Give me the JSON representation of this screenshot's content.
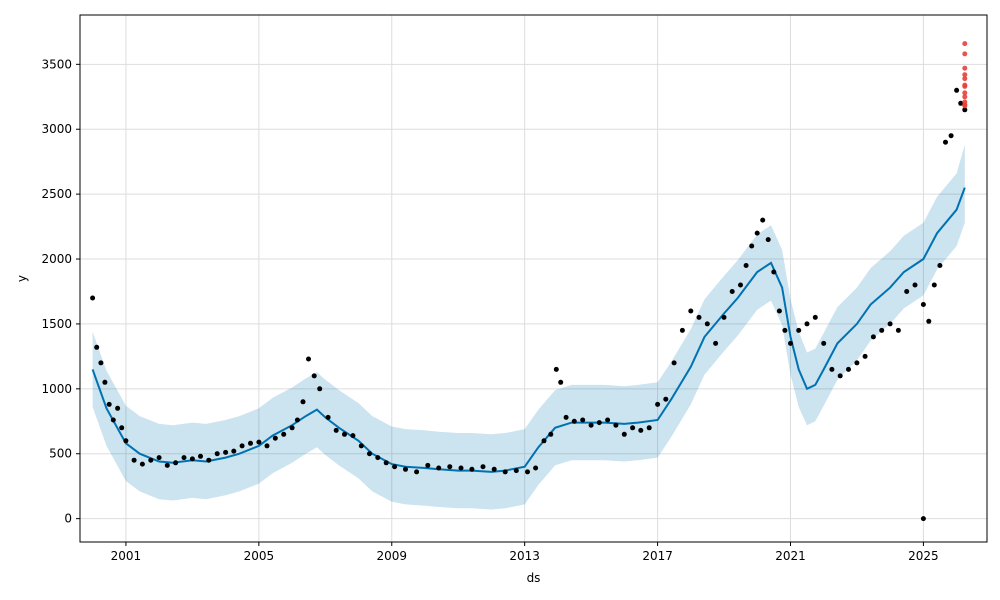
{
  "chart_data": {
    "type": "scatter",
    "title": "",
    "xlabel": "ds",
    "ylabel": "y",
    "x_type": "date",
    "xlim": [
      "1999-08-15",
      "2026-12-01"
    ],
    "ylim": [
      -180,
      3880
    ],
    "xticks": [
      "2001",
      "2005",
      "2009",
      "2013",
      "2017",
      "2021",
      "2025"
    ],
    "yticks": [
      0,
      500,
      1000,
      1500,
      2000,
      2500,
      3000,
      3500
    ],
    "grid": true,
    "colors": {
      "actual": "#000000",
      "forecast_line": "#0072B2",
      "uncertainty_band": "#0072B2",
      "future_points": "#e8403a"
    },
    "series": [
      {
        "name": "",
        "kind": "observed points",
        "x": [
          "2000-01-01",
          "2000-02-15",
          "2000-04-01",
          "2000-05-15",
          "2000-07-01",
          "2000-08-15",
          "2000-10-01",
          "2000-11-15",
          "2001-01-01",
          "2001-04-01",
          "2001-07-01",
          "2001-10-01",
          "2002-01-01",
          "2002-04-01",
          "2002-07-01",
          "2002-10-01",
          "2003-01-01",
          "2003-04-01",
          "2003-07-01",
          "2003-10-01",
          "2004-01-01",
          "2004-04-01",
          "2004-07-01",
          "2004-10-01",
          "2005-01-01",
          "2005-04-01",
          "2005-07-01",
          "2005-10-01",
          "2006-01-01",
          "2006-03-01",
          "2006-05-01",
          "2006-07-01",
          "2006-09-01",
          "2006-11-01",
          "2007-02-01",
          "2007-05-01",
          "2007-08-01",
          "2007-11-01",
          "2008-02-01",
          "2008-05-01",
          "2008-08-01",
          "2008-11-01",
          "2009-02-01",
          "2009-06-01",
          "2009-10-01",
          "2010-02-01",
          "2010-06-01",
          "2010-10-01",
          "2011-02-01",
          "2011-06-01",
          "2011-10-01",
          "2012-02-01",
          "2012-06-01",
          "2012-10-01",
          "2013-02-01",
          "2013-05-01",
          "2013-08-01",
          "2013-10-15",
          "2013-12-15",
          "2014-02-01",
          "2014-04-01",
          "2014-07-01",
          "2014-10-01",
          "2015-01-01",
          "2015-04-01",
          "2015-07-01",
          "2015-10-01",
          "2016-01-01",
          "2016-04-01",
          "2016-07-01",
          "2016-10-01",
          "2017-01-01",
          "2017-04-01",
          "2017-07-01",
          "2017-10-01",
          "2018-01-01",
          "2018-04-01",
          "2018-07-01",
          "2018-10-01",
          "2019-01-01",
          "2019-04-01",
          "2019-07-01",
          "2019-09-01",
          "2019-11-01",
          "2020-01-01",
          "2020-03-01",
          "2020-05-01",
          "2020-07-01",
          "2020-09-01",
          "2020-11-01",
          "2021-01-01",
          "2021-04-01",
          "2021-07-01",
          "2021-10-01",
          "2022-01-01",
          "2022-04-01",
          "2022-07-01",
          "2022-10-01",
          "2023-01-01",
          "2023-04-01",
          "2023-07-01",
          "2023-10-01",
          "2024-01-01",
          "2024-04-01",
          "2024-07-01",
          "2024-10-01",
          "2025-01-01",
          "2025-03-01",
          "2025-05-01",
          "2025-07-01",
          "2025-09-01",
          "2025-11-01",
          "2026-01-01",
          "2026-02-15",
          "2026-04-01",
          "2025-01-01"
        ],
        "y": [
          1700,
          1320,
          1200,
          1050,
          880,
          760,
          850,
          700,
          600,
          450,
          420,
          450,
          470,
          410,
          430,
          470,
          460,
          480,
          450,
          500,
          510,
          520,
          560,
          580,
          590,
          560,
          620,
          650,
          700,
          760,
          900,
          1230,
          1100,
          1000,
          780,
          680,
          650,
          640,
          560,
          500,
          470,
          430,
          400,
          380,
          360,
          410,
          390,
          400,
          390,
          380,
          400,
          380,
          360,
          370,
          360,
          390,
          600,
          650,
          1150,
          1050,
          780,
          750,
          760,
          720,
          740,
          760,
          720,
          650,
          700,
          680,
          700,
          880,
          920,
          1200,
          1450,
          1600,
          1550,
          1500,
          1350,
          1550,
          1750,
          1800,
          1950,
          2100,
          2200,
          2300,
          2150,
          1900,
          1600,
          1450,
          1350,
          1450,
          1500,
          1550,
          1350,
          1150,
          1100,
          1150,
          1200,
          1250,
          1400,
          1450,
          1500,
          1450,
          1750,
          1800,
          1650,
          1520,
          1800,
          1950,
          2900,
          2950,
          3300,
          3200,
          3150,
          0
        ]
      },
      {
        "name": "",
        "kind": "forecast line",
        "x": [
          "2000-01-01",
          "2000-06-01",
          "2001-01-01",
          "2001-06-01",
          "2002-01-01",
          "2002-06-01",
          "2003-01-01",
          "2003-06-01",
          "2004-01-01",
          "2004-06-01",
          "2005-01-01",
          "2005-06-01",
          "2006-01-01",
          "2006-06-01",
          "2006-10-01",
          "2007-01-01",
          "2007-06-01",
          "2008-01-01",
          "2008-06-01",
          "2009-01-01",
          "2009-06-01",
          "2010-01-01",
          "2010-06-01",
          "2011-01-01",
          "2011-06-01",
          "2012-01-01",
          "2012-06-01",
          "2013-01-01",
          "2013-06-01",
          "2013-12-01",
          "2014-06-01",
          "2015-01-01",
          "2015-06-01",
          "2016-01-01",
          "2016-06-01",
          "2017-01-01",
          "2017-06-01",
          "2018-01-01",
          "2018-06-01",
          "2019-01-01",
          "2019-06-01",
          "2020-01-01",
          "2020-06-01",
          "2020-10-01",
          "2021-01-01",
          "2021-04-01",
          "2021-07-01",
          "2021-10-01",
          "2022-01-01",
          "2022-06-01",
          "2023-01-01",
          "2023-06-01",
          "2024-01-01",
          "2024-06-01",
          "2025-01-01",
          "2025-06-01",
          "2026-01-01",
          "2026-04-01"
        ],
        "y": [
          1150,
          850,
          580,
          500,
          440,
          430,
          450,
          440,
          470,
          500,
          560,
          640,
          720,
          790,
          840,
          780,
          700,
          600,
          500,
          420,
          400,
          390,
          380,
          370,
          370,
          360,
          370,
          400,
          550,
          700,
          740,
          740,
          740,
          730,
          740,
          760,
          920,
          1170,
          1400,
          1580,
          1700,
          1900,
          1970,
          1780,
          1400,
          1150,
          1000,
          1030,
          1150,
          1350,
          1500,
          1650,
          1780,
          1900,
          2000,
          2200,
          2380,
          2550
        ]
      },
      {
        "name": "",
        "kind": "uncertainty band",
        "x": [
          "2000-01-01",
          "2000-06-01",
          "2001-01-01",
          "2001-06-01",
          "2002-01-01",
          "2002-06-01",
          "2003-01-01",
          "2003-06-01",
          "2004-01-01",
          "2004-06-01",
          "2005-01-01",
          "2005-06-01",
          "2006-01-01",
          "2006-06-01",
          "2006-10-01",
          "2007-01-01",
          "2007-06-01",
          "2008-01-01",
          "2008-06-01",
          "2009-01-01",
          "2009-06-01",
          "2010-01-01",
          "2010-06-01",
          "2011-01-01",
          "2011-06-01",
          "2012-01-01",
          "2012-06-01",
          "2013-01-01",
          "2013-06-01",
          "2013-12-01",
          "2014-06-01",
          "2015-01-01",
          "2015-06-01",
          "2016-01-01",
          "2016-06-01",
          "2017-01-01",
          "2017-06-01",
          "2018-01-01",
          "2018-06-01",
          "2019-01-01",
          "2019-06-01",
          "2020-01-01",
          "2020-06-01",
          "2020-10-01",
          "2021-01-01",
          "2021-04-01",
          "2021-07-01",
          "2021-10-01",
          "2022-01-01",
          "2022-06-01",
          "2023-01-01",
          "2023-06-01",
          "2024-01-01",
          "2024-06-01",
          "2025-01-01",
          "2025-06-01",
          "2026-01-01",
          "2026-04-01"
        ],
        "lower": [
          860,
          560,
          290,
          210,
          150,
          140,
          160,
          150,
          180,
          210,
          270,
          350,
          430,
          500,
          550,
          490,
          410,
          310,
          210,
          130,
          110,
          100,
          90,
          80,
          80,
          70,
          80,
          110,
          260,
          410,
          450,
          450,
          450,
          440,
          450,
          470,
          630,
          880,
          1110,
          1290,
          1410,
          1610,
          1680,
          1490,
          1110,
          860,
          720,
          750,
          870,
          1070,
          1220,
          1370,
          1500,
          1620,
          1720,
          1920,
          2100,
          2280
        ],
        "upper": [
          1440,
          1140,
          870,
          790,
          730,
          720,
          740,
          730,
          760,
          790,
          850,
          930,
          1010,
          1080,
          1130,
          1070,
          990,
          890,
          790,
          710,
          690,
          680,
          670,
          660,
          660,
          650,
          660,
          690,
          840,
          990,
          1030,
          1030,
          1030,
          1020,
          1030,
          1050,
          1210,
          1460,
          1690,
          1870,
          1990,
          2190,
          2260,
          2070,
          1690,
          1440,
          1280,
          1310,
          1430,
          1630,
          1780,
          1930,
          2060,
          2180,
          2280,
          2480,
          2660,
          2880
        ]
      },
      {
        "name": "",
        "kind": "future observed points",
        "x": [
          "2026-04-01",
          "2026-04-01",
          "2026-04-01",
          "2026-04-01",
          "2026-04-01",
          "2026-04-01",
          "2026-04-01",
          "2026-04-01",
          "2026-04-01",
          "2026-04-01",
          "2026-04-01",
          "2026-04-01"
        ],
        "y": [
          3660,
          3580,
          3470,
          3420,
          3390,
          3340,
          3330,
          3280,
          3250,
          3210,
          3190,
          3180
        ]
      }
    ]
  }
}
